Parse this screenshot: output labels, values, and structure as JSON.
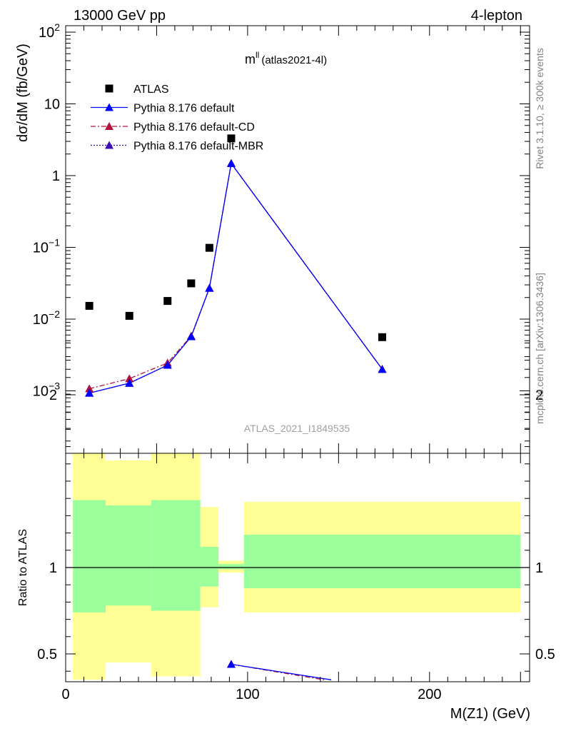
{
  "header": {
    "left": "13000 GeV pp",
    "right": "4-lepton"
  },
  "title": {
    "main": "m",
    "superscript": "ll",
    "detail": "(atlas2021-4l)"
  },
  "side_text": {
    "rivet": "Rivet 3.1.10, ≥ 300k events",
    "site": "mcplots.cern.ch [arXiv:1306.3436]"
  },
  "watermark": "ATLAS_2021_I1849535",
  "legend": [
    {
      "label": "ATLAS",
      "marker": "square",
      "color": "#000000",
      "line": "none"
    },
    {
      "label": "Pythia 8.176 default",
      "marker": "triangle",
      "color": "#0000ff",
      "line": "solid"
    },
    {
      "label": "Pythia 8.176 default-CD",
      "marker": "triangle",
      "color": "#b0103a",
      "line": "dashdot"
    },
    {
      "label": "Pythia 8.176 default-MBR",
      "marker": "triangle",
      "color": "#3a0ab5",
      "line": "dotted"
    }
  ],
  "chart_data": [
    {
      "type": "scatter",
      "panel": "main",
      "ylabel": "dσ/dM (fb/GeV)",
      "yscale": "log",
      "xlim": [
        0,
        255
      ],
      "ylim": [
        0.00017,
        130
      ],
      "y_ticks": [
        {
          "value": 0.001,
          "base": "10",
          "exp": "−3"
        },
        {
          "value": 0.01,
          "base": "10",
          "exp": "−2"
        },
        {
          "value": 0.1,
          "base": "10",
          "exp": "−1"
        },
        {
          "value": 1,
          "base": "1",
          "exp": ""
        },
        {
          "value": 10,
          "base": "10",
          "exp": ""
        },
        {
          "value": 100,
          "base": "10",
          "exp": "2"
        }
      ],
      "series": [
        {
          "name": "ATLAS",
          "x": [
            13,
            35,
            56,
            69,
            79,
            91,
            174
          ],
          "y": [
            0.0153,
            0.0111,
            0.0179,
            0.0315,
            0.0985,
            3.3,
            0.0056
          ]
        },
        {
          "name": "Pythia 8.176 default",
          "x": [
            13,
            35,
            56,
            69,
            79,
            91,
            174
          ],
          "y": [
            0.00093,
            0.00128,
            0.00228,
            0.0057,
            0.027,
            1.48,
            0.002
          ]
        },
        {
          "name": "Pythia 8.176 default-CD",
          "x": [
            13,
            35,
            56,
            69,
            79,
            91,
            174
          ],
          "y": [
            0.00107,
            0.00148,
            0.00245,
            0.0058,
            0.027,
            1.48,
            0.002
          ]
        },
        {
          "name": "Pythia 8.176 default-MBR",
          "x": [
            13,
            35,
            56,
            69,
            79,
            91,
            174
          ],
          "y": [
            0.00093,
            0.00128,
            0.00228,
            0.0057,
            0.027,
            1.48,
            0.002
          ]
        }
      ]
    },
    {
      "type": "area",
      "panel": "ratio",
      "ylabel": "Ratio to ATLAS",
      "xlabel": "M(Z1) (GeV)",
      "xlim": [
        0,
        255
      ],
      "ylim": [
        0.35,
        2.35
      ],
      "x_ticks": [
        0,
        100,
        200
      ],
      "y_ticks": [
        0.5,
        1,
        2
      ],
      "bands": [
        {
          "x0": 4,
          "x1": 22,
          "outer": [
            0.35,
            1.68
          ],
          "inner": [
            0.74,
            1.39
          ]
        },
        {
          "x0": 22,
          "x1": 47,
          "outer": [
            0.45,
            1.62
          ],
          "inner": [
            0.78,
            1.36
          ]
        },
        {
          "x0": 47,
          "x1": 74,
          "outer": [
            0.37,
            1.67
          ],
          "inner": [
            0.75,
            1.39
          ]
        },
        {
          "x0": 74,
          "x1": 84,
          "outer": [
            0.77,
            1.35
          ],
          "inner": [
            0.89,
            1.12
          ]
        },
        {
          "x0": 84,
          "x1": 98,
          "outer": [
            0.97,
            1.04
          ],
          "inner": [
            0.99,
            1.02
          ]
        },
        {
          "x0": 98,
          "x1": 250,
          "outer": [
            0.74,
            1.38
          ],
          "inner": [
            0.88,
            1.19
          ]
        }
      ],
      "series": [
        {
          "name": "Pythia 8.176 default",
          "x": [
            91,
            146
          ],
          "y": [
            0.44,
            0.35
          ]
        },
        {
          "name": "Pythia 8.176 default-CD",
          "x": [
            91,
            142
          ],
          "y": [
            0.44,
            0.35
          ]
        }
      ]
    }
  ]
}
